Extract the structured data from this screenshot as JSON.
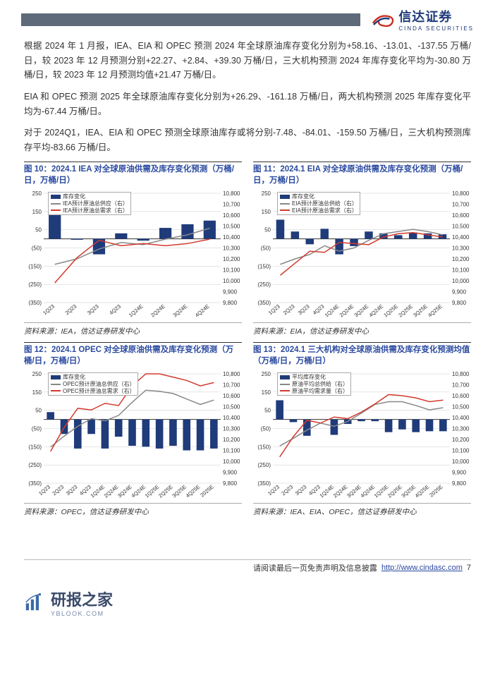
{
  "header": {
    "logo_main": "信达证券",
    "logo_sub": "CINDA SECURITIES"
  },
  "paragraphs": {
    "p1": "根据 2024 年 1 月报，IEA、EIA 和 OPEC 预测 2024 年全球原油库存变化分别为+58.16、-13.01、-137.55 万桶/日，较 2023 年 12 月预测分别+22.27、+2.84、+39.30 万桶/日，三大机构预测 2024 年库存变化平均为-30.80 万桶/日，较 2023 年 12 月预测均值+21.47 万桶/日。",
    "p2": "EIA 和 OPEC 预测 2025 年全球原油库存变化分别为+26.29、-161.18 万桶/日，两大机构预测 2025 年库存变化平均为-67.44 万桶/日。",
    "p3": "对于 2024Q1，IEA、EIA 和 OPEC 预测全球原油库存或将分别-7.48、-84.01、-159.50 万桶/日，三大机构预测库存平均-83.66 万桶/日。"
  },
  "charts": {
    "c10": {
      "title": "图 10：2024.1 IEA 对全球原油供需及库存变化预测（万桶/日，万桶/日）",
      "source": "资料来源：IEA，信达证券研发中心",
      "type": "bar+line",
      "categories": [
        "1Q23",
        "2Q23",
        "3Q23",
        "4Q23",
        "1Q24E",
        "2Q24E",
        "3Q24E",
        "4Q24E"
      ],
      "bars": [
        170,
        -5,
        -85,
        30,
        -10,
        60,
        80,
        100
      ],
      "line_supply": [
        10150,
        10200,
        10290,
        10350,
        10330,
        10380,
        10420,
        10480
      ],
      "line_demand": [
        9980,
        10210,
        10370,
        10320,
        10340,
        10320,
        10340,
        10380
      ],
      "legend": [
        "库存变化",
        "IEA预计原油总供应（右）",
        "IEA预计原油总需求（右）"
      ],
      "y_left": {
        "min": -350,
        "max": 250,
        "step": 100,
        "labels": [
          "(350)",
          "(250)",
          "(150)",
          "(50)",
          "50",
          "150",
          "250"
        ]
      },
      "y_right": {
        "min": 9800,
        "max": 10800,
        "step": 100
      },
      "colors": {
        "bar": "#1f3b7a",
        "supply": "#888888",
        "demand": "#d23b2e",
        "bg": "#ffffff",
        "grid": "#cccccc",
        "axis": "#333333"
      },
      "font_size": 8
    },
    "c11": {
      "title": "图 11：2024.1 EIA 对全球原油供需及库存变化预测（万桶/日，万桶/日）",
      "source": "资料来源：EIA，信达证券研发中心",
      "type": "bar+line",
      "categories": [
        "1Q23",
        "2Q23",
        "3Q23",
        "4Q23",
        "1Q24E",
        "2Q24E",
        "3Q24E",
        "4Q24E",
        "1Q25E",
        "2Q25E",
        "3Q25E",
        "4Q25E"
      ],
      "bars": [
        105,
        40,
        -30,
        55,
        -85,
        -40,
        40,
        30,
        20,
        35,
        30,
        25
      ],
      "line_supply": [
        10150,
        10200,
        10240,
        10320,
        10270,
        10300,
        10370,
        10430,
        10450,
        10470,
        10450,
        10420
      ],
      "line_demand": [
        10050,
        10160,
        10270,
        10260,
        10350,
        10340,
        10330,
        10400,
        10430,
        10440,
        10420,
        10400
      ],
      "legend": [
        "库存变化",
        "EIA预计原油总供给（右）",
        "EIA预计原油总需求（右）"
      ],
      "y_left": {
        "min": -350,
        "max": 250,
        "step": 100,
        "labels": [
          "(350)",
          "(250)",
          "(150)",
          "(50)",
          "50",
          "150",
          "250"
        ]
      },
      "y_right": {
        "min": 9800,
        "max": 10800,
        "step": 100
      },
      "colors": {
        "bar": "#1f3b7a",
        "supply": "#888888",
        "demand": "#d23b2e",
        "bg": "#ffffff",
        "grid": "#cccccc",
        "axis": "#333333"
      },
      "font_size": 8
    },
    "c12": {
      "title": "图 12：2024.1 OPEC 对全球原油供需及库存变化预测（万桶/日，万桶/日）",
      "source": "资料来源：OPEC，信达证券研发中心",
      "type": "bar+line",
      "categories": [
        "1Q23",
        "2Q23",
        "3Q23",
        "4Q23",
        "1Q24E",
        "2Q24E",
        "3Q24E",
        "4Q24E",
        "1Q25E",
        "2Q25E",
        "3Q25E",
        "4Q25E",
        "2025E"
      ],
      "bars": [
        40,
        -80,
        -160,
        -80,
        -160,
        -95,
        -145,
        -150,
        -160,
        -145,
        -170,
        -170,
        -160
      ],
      "line_supply": [
        10130,
        10230,
        10320,
        10390,
        10370,
        10420,
        10540,
        10650,
        10640,
        10620,
        10570,
        10520,
        10560
      ],
      "line_demand": [
        10090,
        10310,
        10485,
        10470,
        10530,
        10510,
        10690,
        10800,
        10800,
        10770,
        10740,
        10690,
        10720
      ],
      "legend": [
        "库存变化",
        "OPEC预计原油总供应（右）",
        "OPEC预计原油总需求（右）"
      ],
      "y_left": {
        "min": -350,
        "max": 250,
        "step": 100,
        "labels": [
          "(350)",
          "(250)",
          "(150)",
          "(50)",
          "50",
          "150",
          "250"
        ]
      },
      "y_right": {
        "min": 9800,
        "max": 10800,
        "step": 100
      },
      "colors": {
        "bar": "#1f3b7a",
        "supply": "#888888",
        "demand": "#d23b2e",
        "bg": "#ffffff",
        "grid": "#cccccc",
        "axis": "#333333"
      },
      "font_size": 8
    },
    "c13": {
      "title": "图 13：2024.1 三大机构对全球原油供需及库存变化预测均值（万桶/日，万桶/日）",
      "source": "资料来源：IEA、EIA、OPEC，信达证券研发中心",
      "type": "bar+line",
      "categories": [
        "1Q23",
        "2Q23",
        "3Q23",
        "4Q23",
        "1Q24E",
        "2Q24E",
        "3Q24E",
        "4Q24E",
        "1Q25E",
        "2Q25E",
        "3Q25E",
        "4Q25E",
        "2025E"
      ],
      "bars": [
        105,
        -15,
        -90,
        0,
        -85,
        -25,
        -10,
        -10,
        -70,
        -55,
        -70,
        -65,
        -65
      ],
      "line_supply": [
        10140,
        10210,
        10285,
        10350,
        10320,
        10365,
        10440,
        10520,
        10545,
        10545,
        10510,
        10470,
        10490
      ],
      "line_demand": [
        10040,
        10225,
        10375,
        10350,
        10405,
        10390,
        10450,
        10525,
        10610,
        10600,
        10580,
        10545,
        10560
      ],
      "legend": [
        "平均库存变化",
        "原油平均总供给（右）",
        "原油平均需求量（右）"
      ],
      "y_left": {
        "min": -350,
        "max": 250,
        "step": 100,
        "labels": [
          "(350)",
          "(250)",
          "(150)",
          "(50)",
          "50",
          "150",
          "250"
        ]
      },
      "y_right": {
        "min": 9800,
        "max": 10800,
        "step": 100
      },
      "colors": {
        "bar": "#1f3b7a",
        "supply": "#888888",
        "demand": "#d23b2e",
        "bg": "#ffffff",
        "grid": "#cccccc",
        "axis": "#333333"
      },
      "font_size": 8
    }
  },
  "footer": {
    "disclaimer": "请阅读最后一页免责声明及信息披露",
    "url": "http://www.cindasc.com",
    "page": "7"
  },
  "brand": {
    "name": "研报之家",
    "domain": "YBLOOK.COM"
  }
}
